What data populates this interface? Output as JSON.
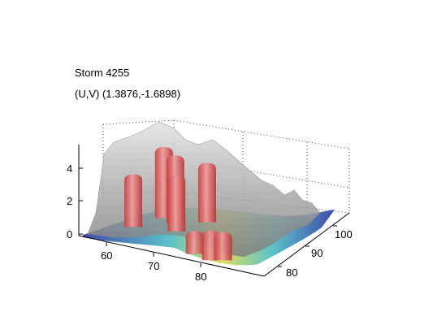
{
  "chart_data": {
    "type": "surface3d",
    "title": "Storm 4255",
    "subtitle": "(U,V) (1.3876,-1.6898)",
    "xlabel": "",
    "ylabel": "",
    "zlabel": "",
    "x_ticks": [
      "60",
      "70",
      "80"
    ],
    "y_ticks": [
      "80",
      "90",
      "100"
    ],
    "z_ticks": [
      "0",
      "2",
      "4"
    ],
    "grid": true,
    "colors": {
      "isosurface_outer": "#9c9c9c",
      "isosurface_core": "#e06060",
      "base_slice_low": "#2b3aa8",
      "base_slice_mid": "#3fb8c0",
      "base_slice_high": "#d8d840"
    },
    "cores": [
      {
        "x": 61,
        "y": 88,
        "height": 3.2
      },
      {
        "x": 64,
        "y": 94,
        "height": 4.3
      },
      {
        "x": 67,
        "y": 93,
        "height": 4.1
      },
      {
        "x": 69,
        "y": 90,
        "height": 3.4
      },
      {
        "x": 72,
        "y": 96,
        "height": 3.6
      },
      {
        "x": 77,
        "y": 83,
        "height": 1.4
      },
      {
        "x": 81,
        "y": 82,
        "height": 1.8
      },
      {
        "x": 83,
        "y": 83,
        "height": 1.7
      }
    ],
    "ridge": [
      {
        "x": 60,
        "y": 100,
        "height": 4.1
      },
      {
        "x": 66,
        "y": 101,
        "height": 4.6
      },
      {
        "x": 72,
        "y": 100,
        "height": 4.3
      },
      {
        "x": 78,
        "y": 99,
        "height": 3.5
      },
      {
        "x": 84,
        "y": 96,
        "height": 2.6
      },
      {
        "x": 88,
        "y": 93,
        "height": 1.6
      }
    ]
  }
}
